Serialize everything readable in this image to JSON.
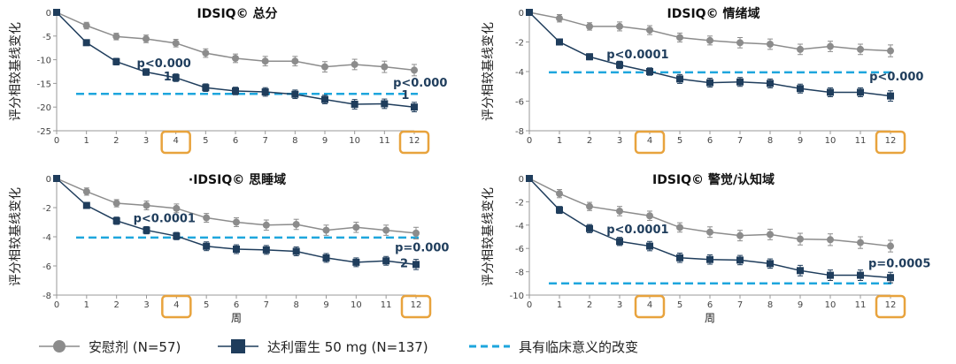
{
  "chart_data": [
    {
      "type": "line",
      "title": "IDSIQ© 总分",
      "ylabel": "评分相较基线变化",
      "xlabel": "",
      "x": [
        0,
        1,
        2,
        3,
        4,
        5,
        6,
        7,
        8,
        9,
        10,
        11,
        12
      ],
      "xlim": [
        0,
        12
      ],
      "ylim": [
        -25,
        0
      ],
      "yticks": [
        0,
        -5,
        -10,
        -15,
        -20,
        -25
      ],
      "highlighted_x": [
        4,
        12
      ],
      "threshold": -17.2,
      "series": [
        {
          "name": "安慰剂 (N=57)",
          "values": [
            0,
            -2.8,
            -5.1,
            -5.6,
            -6.5,
            -8.6,
            -9.7,
            -10.3,
            -10.3,
            -11.5,
            -11.0,
            -11.5,
            -12.2
          ],
          "err": [
            0.6,
            0.7,
            0.7,
            0.8,
            0.8,
            0.9,
            0.9,
            1.0,
            1.0,
            1.1,
            1.1,
            1.2,
            1.2
          ]
        },
        {
          "name": "达利雷生 50 mg (N=137)",
          "values": [
            0,
            -6.4,
            -10.4,
            -12.6,
            -13.8,
            -15.9,
            -16.6,
            -16.8,
            -17.3,
            -18.4,
            -19.4,
            -19.3,
            -20.0
          ],
          "err": [
            0.5,
            0.6,
            0.7,
            0.7,
            0.8,
            0.8,
            0.8,
            0.9,
            0.9,
            0.9,
            1.0,
            1.0,
            1.0
          ]
        }
      ],
      "annotations": [
        {
          "text": "p<0.000",
          "x": 3.6,
          "y": -11.6
        },
        {
          "text": "1",
          "x": 3.72,
          "y": -14.4
        },
        {
          "text": "p<0.000",
          "x": 12.2,
          "y": -15.7
        },
        {
          "text": "1",
          "x": 11.7,
          "y": -18.3
        }
      ]
    },
    {
      "type": "line",
      "title": "IDSIQ© 情绪域",
      "ylabel": "评分相较基线变化",
      "xlabel": "",
      "x": [
        0,
        1,
        2,
        3,
        4,
        5,
        6,
        7,
        8,
        9,
        10,
        11,
        12
      ],
      "xlim": [
        0,
        12
      ],
      "ylim": [
        -8,
        0
      ],
      "yticks": [
        0,
        -2,
        -4,
        -6,
        -8
      ],
      "highlighted_x": [
        4,
        12
      ],
      "threshold": -4.05,
      "series": [
        {
          "name": "安慰剂 (N=57)",
          "values": [
            0,
            -0.4,
            -0.95,
            -0.95,
            -1.2,
            -1.7,
            -1.9,
            -2.05,
            -2.15,
            -2.5,
            -2.3,
            -2.5,
            -2.6
          ],
          "err": [
            0.2,
            0.25,
            0.25,
            0.3,
            0.3,
            0.3,
            0.3,
            0.35,
            0.35,
            0.35,
            0.35,
            0.35,
            0.4
          ]
        },
        {
          "name": "达利雷生 50 mg (N=137)",
          "values": [
            0,
            -2.0,
            -3.0,
            -3.55,
            -4.0,
            -4.5,
            -4.75,
            -4.7,
            -4.8,
            -5.15,
            -5.4,
            -5.4,
            -5.65
          ],
          "err": [
            0.15,
            0.2,
            0.2,
            0.25,
            0.25,
            0.3,
            0.3,
            0.3,
            0.3,
            0.3,
            0.3,
            0.3,
            0.35
          ]
        }
      ],
      "annotations": [
        {
          "text": "p<0.0001",
          "x": 3.6,
          "y": -3.1
        },
        {
          "text": "p<0.000",
          "x": 12.2,
          "y": -4.6
        }
      ]
    },
    {
      "type": "line",
      "title": "·IDSIQ© 思睡域",
      "ylabel": "评分相较基线变化",
      "xlabel": "周",
      "x": [
        0,
        1,
        2,
        3,
        4,
        5,
        6,
        7,
        8,
        9,
        10,
        11,
        12
      ],
      "xlim": [
        0,
        12
      ],
      "ylim": [
        -8,
        0
      ],
      "yticks": [
        0,
        -2,
        -4,
        -6,
        -8
      ],
      "highlighted_x": [
        4,
        12
      ],
      "threshold": -4.05,
      "series": [
        {
          "name": "安慰剂 (N=57)",
          "values": [
            0,
            -0.9,
            -1.7,
            -1.85,
            -2.05,
            -2.7,
            -3.0,
            -3.2,
            -3.15,
            -3.55,
            -3.35,
            -3.55,
            -3.75
          ],
          "err": [
            0.2,
            0.25,
            0.25,
            0.3,
            0.3,
            0.3,
            0.3,
            0.35,
            0.35,
            0.35,
            0.35,
            0.35,
            0.4
          ]
        },
        {
          "name": "达利雷生 50 mg (N=137)",
          "values": [
            0,
            -1.85,
            -2.9,
            -3.55,
            -3.95,
            -4.65,
            -4.85,
            -4.9,
            -5.0,
            -5.45,
            -5.75,
            -5.65,
            -5.9
          ],
          "err": [
            0.15,
            0.2,
            0.25,
            0.25,
            0.25,
            0.3,
            0.3,
            0.3,
            0.3,
            0.3,
            0.3,
            0.3,
            0.35
          ]
        }
      ],
      "annotations": [
        {
          "text": "p<0.0001",
          "x": 3.6,
          "y": -3.0
        },
        {
          "text": "p=0.000",
          "x": 12.2,
          "y": -5.0
        },
        {
          "text": "2",
          "x": 11.6,
          "y": -6.1
        }
      ]
    },
    {
      "type": "line",
      "title": "IDSIQ© 警觉/认知域",
      "ylabel": "评分相较基线变化",
      "xlabel": "周",
      "x": [
        0,
        1,
        2,
        3,
        4,
        5,
        6,
        7,
        8,
        9,
        10,
        11,
        12
      ],
      "xlim": [
        0,
        12
      ],
      "ylim": [
        -10,
        0
      ],
      "yticks": [
        0,
        -2,
        -4,
        -6,
        -8,
        -10
      ],
      "highlighted_x": [
        4,
        12
      ],
      "threshold": -9.0,
      "series": [
        {
          "name": "安慰剂 (N=57)",
          "values": [
            0,
            -1.3,
            -2.4,
            -2.8,
            -3.2,
            -4.2,
            -4.6,
            -4.9,
            -4.8,
            -5.2,
            -5.25,
            -5.5,
            -5.8
          ],
          "err": [
            0.3,
            0.35,
            0.35,
            0.4,
            0.4,
            0.4,
            0.45,
            0.45,
            0.45,
            0.5,
            0.5,
            0.5,
            0.5
          ]
        },
        {
          "name": "达利雷生 50 mg (N=137)",
          "values": [
            0,
            -2.7,
            -4.3,
            -5.4,
            -5.8,
            -6.8,
            -6.95,
            -7.0,
            -7.3,
            -7.9,
            -8.3,
            -8.3,
            -8.5
          ],
          "err": [
            0.25,
            0.3,
            0.35,
            0.35,
            0.4,
            0.4,
            0.4,
            0.4,
            0.4,
            0.45,
            0.45,
            0.45,
            0.45
          ]
        }
      ],
      "annotations": [
        {
          "text": "p<0.0001",
          "x": 3.6,
          "y": -4.7
        },
        {
          "text": "p=0.0005",
          "x": 12.3,
          "y": -7.6
        }
      ]
    }
  ],
  "legend": {
    "placebo": "安慰剂 (N=57)",
    "drug": "达利雷生 50 mg (N=137)",
    "threshold": "具有临床意义的改变"
  },
  "colors": {
    "placebo": "#8c8c8c",
    "drug": "#1f3d5c",
    "threshold": "#1ea6dd",
    "highlight": "#e8a33d",
    "axis": "#999999",
    "title": "#111111",
    "annotation": "#1f3d5c"
  }
}
